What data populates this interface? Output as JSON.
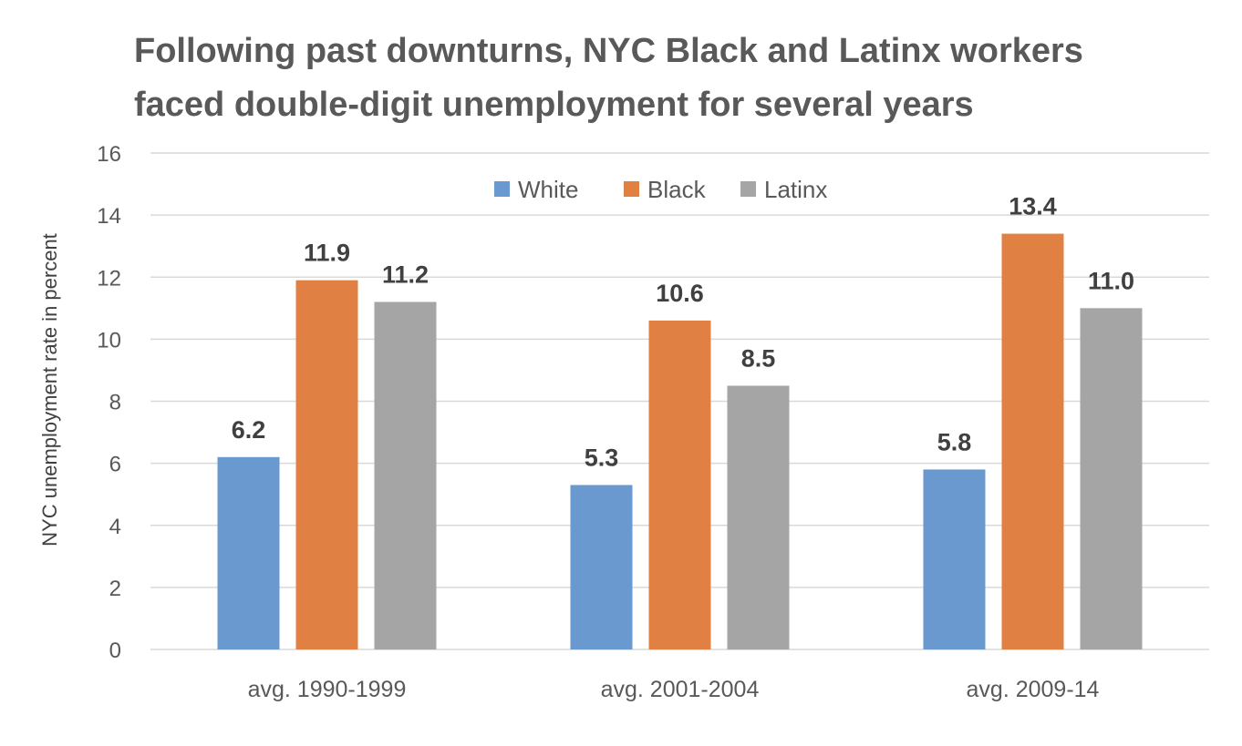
{
  "chart_data": {
    "type": "bar",
    "title": "Following past downturns, NYC Black and Latinx workers faced double-digit unemployment for several years",
    "title_lines": [
      "Following past downturns, NYC Black and Latinx workers",
      "faced double-digit unemployment for several years"
    ],
    "xlabel": "",
    "ylabel": "NYC unemployment rate in percent",
    "categories": [
      "avg. 1990-1999",
      "avg. 2001-2004",
      "avg. 2009-14"
    ],
    "series": [
      {
        "name": "White",
        "color": "#6a99d0",
        "values": [
          6.2,
          5.3,
          5.8
        ],
        "labels": [
          "6.2",
          "5.3",
          "5.8"
        ]
      },
      {
        "name": "Black",
        "color": "#e08143",
        "values": [
          11.9,
          10.6,
          13.4
        ],
        "labels": [
          "11.9",
          "10.6",
          "13.4"
        ]
      },
      {
        "name": "Latinx",
        "color": "#a5a5a5",
        "values": [
          11.2,
          8.5,
          11.0
        ],
        "labels": [
          "11.2",
          "8.5",
          "11.0"
        ]
      }
    ],
    "ylim": [
      0,
      16
    ],
    "yticks": [
      0,
      2,
      4,
      6,
      8,
      10,
      12,
      14,
      16
    ],
    "ytick_labels": [
      "0",
      "2",
      "4",
      "6",
      "8",
      "10",
      "12",
      "14",
      "16"
    ],
    "grid": true,
    "legend_position": "top-center"
  }
}
